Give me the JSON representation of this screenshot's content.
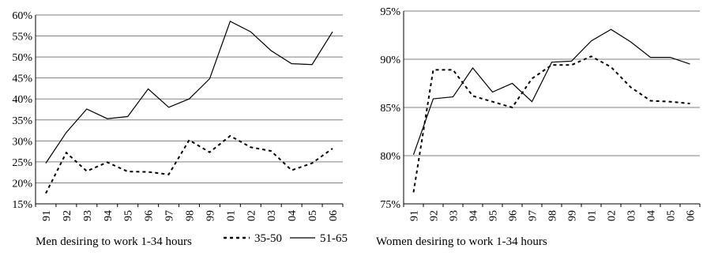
{
  "chart_data": [
    {
      "type": "line",
      "caption": "Men desiring to work 1-34 hours",
      "categories": [
        "91",
        "92",
        "93",
        "94",
        "95",
        "96",
        "97",
        "98",
        "99",
        "01",
        "02",
        "03",
        "04",
        "05",
        "06"
      ],
      "ylim": [
        0.15,
        0.6
      ],
      "yticks": [
        0.15,
        0.2,
        0.25,
        0.3,
        0.35,
        0.4,
        0.45,
        0.5,
        0.55,
        0.6
      ],
      "ytick_labels": [
        "15%",
        "20%",
        "25%",
        "30%",
        "35%",
        "40%",
        "45%",
        "50%",
        "55%",
        "60%"
      ],
      "grid": true,
      "legend_position": "bottom",
      "series": [
        {
          "name": "35-50",
          "style": "dashed",
          "values": [
            0.175,
            0.272,
            0.228,
            0.249,
            0.227,
            0.226,
            0.22,
            0.302,
            0.273,
            0.312,
            0.285,
            0.276,
            0.23,
            0.247,
            0.282
          ]
        },
        {
          "name": "51-65",
          "style": "solid",
          "values": [
            0.247,
            0.32,
            0.376,
            0.353,
            0.358,
            0.424,
            0.38,
            0.4,
            0.448,
            0.585,
            0.56,
            0.515,
            0.484,
            0.482,
            0.56
          ]
        }
      ]
    },
    {
      "type": "line",
      "caption": "Women desiring to work 1-34 hours",
      "categories": [
        "91",
        "92",
        "93",
        "94",
        "95",
        "96",
        "97",
        "98",
        "99",
        "01",
        "02",
        "03",
        "04",
        "05",
        "06"
      ],
      "ylim": [
        0.75,
        0.95
      ],
      "yticks": [
        0.75,
        0.8,
        0.85,
        0.9,
        0.95
      ],
      "ytick_labels": [
        "75%",
        "80%",
        "85%",
        "90%",
        "95%"
      ],
      "grid": true,
      "series": [
        {
          "name": "35-50",
          "style": "dashed",
          "values": [
            0.762,
            0.889,
            0.889,
            0.862,
            0.856,
            0.85,
            0.88,
            0.894,
            0.894,
            0.903,
            0.892,
            0.871,
            0.857,
            0.856,
            0.854
          ]
        },
        {
          "name": "51-65",
          "style": "solid",
          "values": [
            0.801,
            0.859,
            0.861,
            0.891,
            0.866,
            0.875,
            0.856,
            0.897,
            0.898,
            0.919,
            0.931,
            0.918,
            0.902,
            0.902,
            0.895
          ]
        }
      ]
    }
  ],
  "legend": {
    "items": [
      {
        "label": "35-50",
        "style": "dashed"
      },
      {
        "label": "51-65",
        "style": "solid"
      }
    ]
  }
}
